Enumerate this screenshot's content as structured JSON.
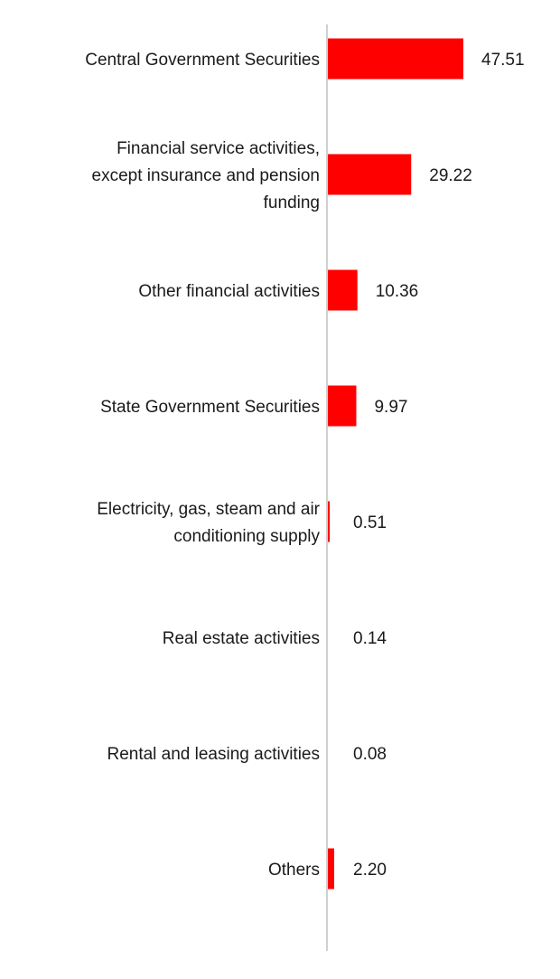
{
  "chart_data": {
    "type": "bar",
    "orientation": "horizontal",
    "categories": [
      "Central Government Securities",
      "Financial service activities, except insurance and pension funding",
      "Other financial activities",
      "State Government Securities",
      "Electricity, gas, steam and air conditioning supply",
      "Real estate activities",
      "Rental and leasing activities",
      "Others"
    ],
    "category_lines": [
      [
        "Central Government Securities"
      ],
      [
        "Financial service activities,",
        "except insurance and pension",
        "funding"
      ],
      [
        "Other financial activities"
      ],
      [
        "State Government Securities"
      ],
      [
        "Electricity, gas, steam and air",
        "conditioning supply"
      ],
      [
        "Real estate activities"
      ],
      [
        "Rental and leasing activities"
      ],
      [
        "Others"
      ]
    ],
    "values": [
      47.51,
      29.22,
      10.36,
      9.97,
      0.51,
      0.14,
      0.08,
      2.2
    ],
    "value_labels": [
      "47.51",
      "29.22",
      "10.36",
      "9.97",
      "0.51",
      "0.14",
      "0.08",
      "2.20"
    ],
    "xlim": [
      0,
      47.51
    ],
    "grid": false,
    "legend": "none",
    "title": "",
    "xlabel": "",
    "ylabel": "",
    "colors": {
      "bar": "#ff0000",
      "axis": "#d0d0d0"
    }
  }
}
